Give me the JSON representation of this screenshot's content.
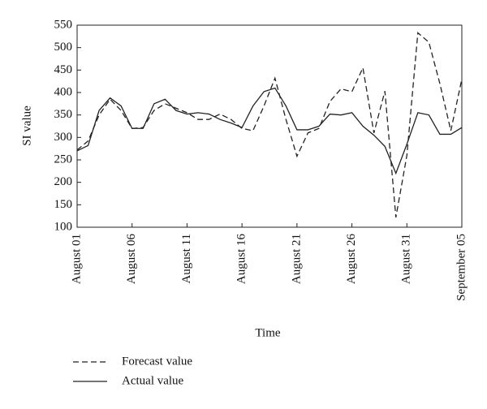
{
  "chart_data": {
    "type": "line",
    "y_label": "SI value",
    "x_label": "Time",
    "categories": [
      "August 01",
      null,
      null,
      null,
      null,
      "August 06",
      null,
      null,
      null,
      null,
      "August 11",
      null,
      null,
      null,
      null,
      "August 16",
      null,
      null,
      null,
      null,
      "August 21",
      null,
      null,
      null,
      null,
      "August 26",
      null,
      null,
      null,
      null,
      "August 31",
      null,
      null,
      null,
      null,
      "September 05"
    ],
    "series": [
      {
        "name": "Forecast value",
        "color": "#222222",
        "style": "dashed",
        "values": [
          272,
          292,
          350,
          385,
          360,
          320,
          322,
          360,
          375,
          365,
          355,
          340,
          340,
          352,
          340,
          320,
          315,
          370,
          432,
          340,
          258,
          310,
          320,
          380,
          408,
          402,
          455,
          310,
          403,
          122,
          260,
          533,
          512,
          420,
          315,
          430
        ]
      },
      {
        "name": "Actual value",
        "color": "#222222",
        "style": "solid",
        "values": [
          270,
          282,
          360,
          388,
          370,
          320,
          320,
          375,
          385,
          360,
          352,
          355,
          352,
          340,
          332,
          322,
          370,
          402,
          410,
          370,
          317,
          317,
          325,
          352,
          350,
          355,
          325,
          305,
          280,
          220,
          285,
          355,
          350,
          307,
          307,
          322
        ]
      }
    ],
    "ylim": [
      100,
      550
    ],
    "yticks": [
      100,
      150,
      200,
      250,
      300,
      350,
      400,
      450,
      500,
      550
    ],
    "legend": "below"
  }
}
